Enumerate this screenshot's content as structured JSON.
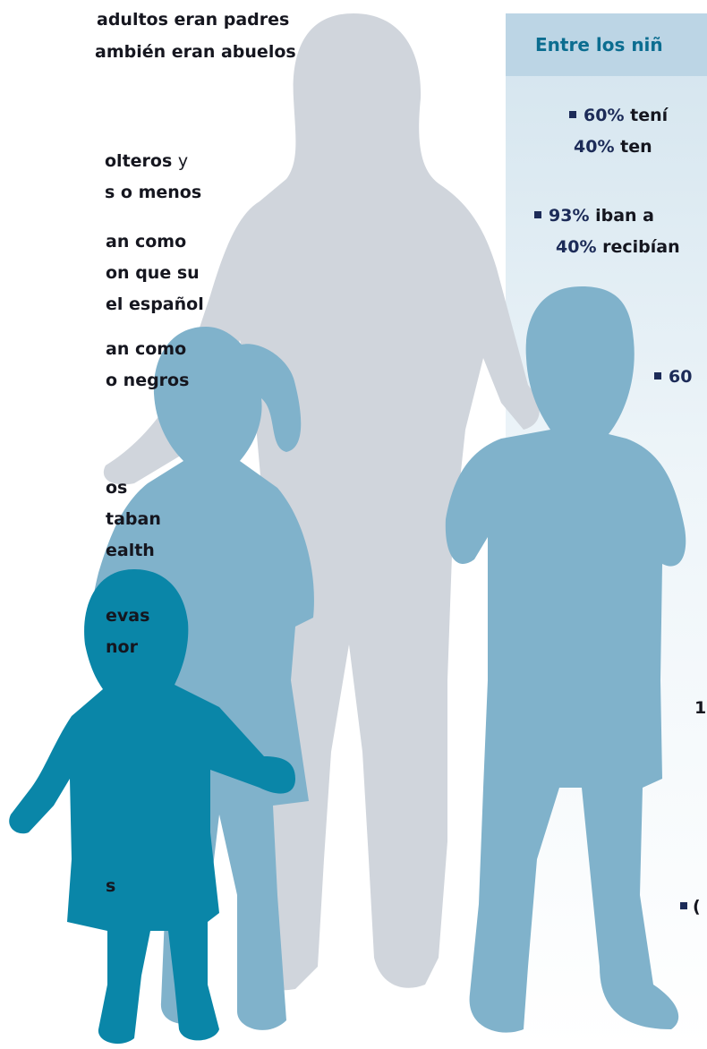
{
  "left_lines": [
    {
      "text": "adultos eran padres"
    },
    {
      "text": "ambién eran abuelos"
    },
    {
      "text": "olteros",
      "plain": "y"
    },
    {
      "text": "s o menos"
    },
    {
      "text": "an como"
    },
    {
      "text": "on que su"
    },
    {
      "text": "el español"
    },
    {
      "text": "an como"
    },
    {
      "text": "o negros"
    },
    {
      "text": "os"
    },
    {
      "text": "taban"
    },
    {
      "text": "ealth"
    },
    {
      "text": "evas"
    },
    {
      "text": "nor"
    },
    {
      "text": "s"
    }
  ],
  "box": {
    "header": "Entre los niñ",
    "lines": [
      {
        "pct": "60%",
        "text": "tení"
      },
      {
        "pct": "40%",
        "text": "ten"
      },
      {
        "pct": "93%",
        "text": "iban a"
      },
      {
        "pct": "40%",
        "text": "recibían"
      },
      {
        "pct": "60"
      },
      {
        "text": "1"
      },
      {
        "text": "("
      }
    ]
  }
}
